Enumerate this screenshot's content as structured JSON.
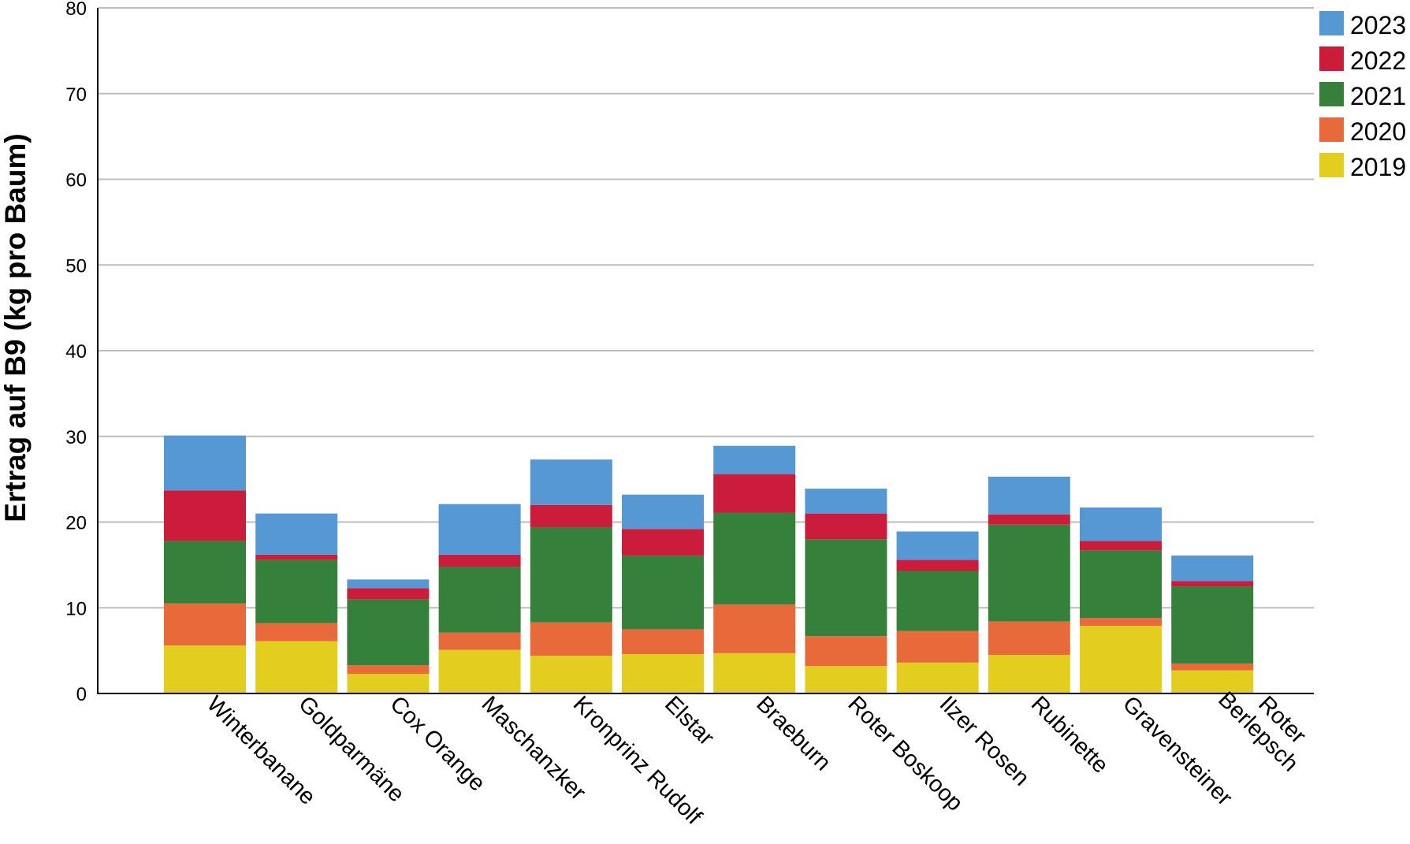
{
  "chart_data": {
    "type": "bar",
    "stacked": true,
    "title": "",
    "xlabel": "",
    "ylabel": "Ertrag auf B9 (kg pro Baum)",
    "ylim": [
      0,
      80
    ],
    "yticks": [
      0,
      10,
      20,
      30,
      40,
      50,
      60,
      70,
      80
    ],
    "grid": true,
    "legend_position": "top-right",
    "categories": [
      "Winterbanane",
      "Goldparmäne",
      "Cox Orange",
      "Maschanzker",
      "Kronprinz Rudolf",
      "Elstar",
      "Braeburn",
      "Roter Boskoop",
      "Ilzer Rosen",
      "Rubinette",
      "Gravensteiner",
      "Roter Berlepsch"
    ],
    "series": [
      {
        "name": "2019",
        "color": "#e3cd1f",
        "values": [
          5.6,
          6.1,
          2.3,
          5.1,
          4.4,
          4.6,
          4.7,
          3.2,
          3.6,
          4.5,
          7.9,
          2.7
        ]
      },
      {
        "name": "2020",
        "color": "#e8693a",
        "values": [
          4.9,
          2.1,
          1.0,
          2.0,
          3.9,
          2.9,
          5.7,
          3.5,
          3.7,
          3.9,
          0.9,
          0.8
        ]
      },
      {
        "name": "2021",
        "color": "#35803a",
        "values": [
          7.3,
          7.4,
          7.7,
          7.7,
          11.1,
          8.6,
          10.7,
          11.3,
          7.0,
          11.3,
          7.9,
          9.0
        ]
      },
      {
        "name": "2022",
        "color": "#cc1c3c",
        "values": [
          5.9,
          0.6,
          1.3,
          1.4,
          2.6,
          3.1,
          4.5,
          3.0,
          1.3,
          1.2,
          1.1,
          0.6
        ]
      },
      {
        "name": "2023",
        "color": "#5598d3",
        "values": [
          6.4,
          4.8,
          1.0,
          5.9,
          5.3,
          4.0,
          3.3,
          2.9,
          3.3,
          4.4,
          3.9,
          3.0
        ]
      }
    ],
    "legend_order": [
      "2023",
      "2022",
      "2021",
      "2020",
      "2019"
    ]
  }
}
